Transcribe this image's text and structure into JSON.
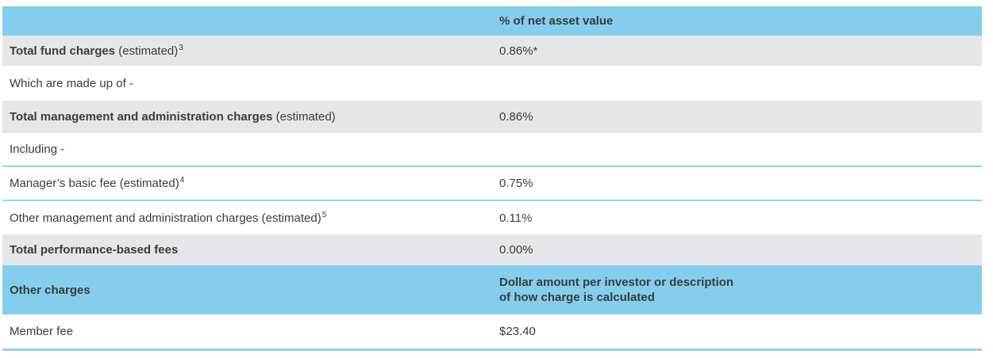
{
  "header": {
    "charge_column_label": "",
    "value_column_label": "% of net asset value"
  },
  "rows": [
    {
      "label_bold": "Total fund charges",
      "label_regular": " (estimated)",
      "superscript": "3",
      "value": "0.86%*"
    },
    {
      "label_regular": "Which are made up of -",
      "value": ""
    },
    {
      "label_bold": "Total management and administration charges",
      "label_regular": " (estimated)",
      "value": "0.86%"
    },
    {
      "label_regular": "Including -",
      "value": ""
    },
    {
      "label_regular": "Manager’s basic fee (estimated)",
      "superscript": "4",
      "value": "0.75%"
    },
    {
      "label_regular": "Other management and administration charges (estimated)",
      "superscript": "5",
      "value": "0.11%"
    },
    {
      "label_bold": "Total performance-based fees",
      "value": "0.00%"
    }
  ],
  "other_charges_header": {
    "label": "Other charges",
    "value_line1": "Dollar amount per investor or description",
    "value_line2": "of how charge is calculated"
  },
  "other_charges_rows": [
    {
      "label_regular": "Member fee",
      "value": "$23.40"
    }
  ],
  "colors": {
    "header_blue": "#85CDEC",
    "row_gray": "#E5E6E7",
    "separator_blue": "#93D4EF",
    "text": "#3C3C3B"
  }
}
